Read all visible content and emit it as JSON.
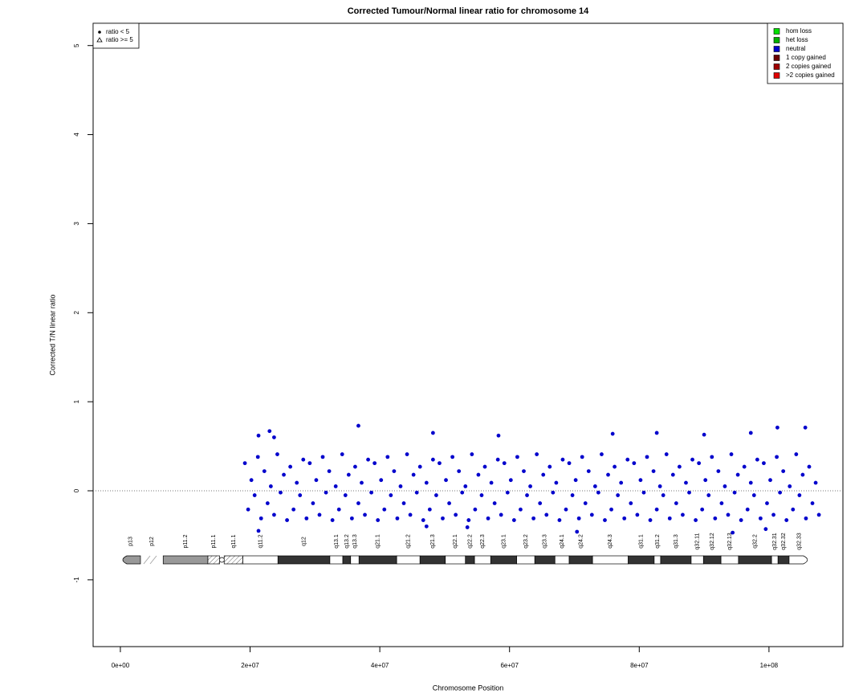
{
  "chart_data": {
    "type": "scatter",
    "title": "Corrected Tumour/Normal linear ratio for chromosome  14",
    "x_label": "Chromosome Position",
    "y_label": "Corrected T/N linear ratio",
    "xlim": [
      -4200000.0,
      111400000.0
    ],
    "ylim": [
      -1.75,
      5.25
    ],
    "xticks": [
      {
        "value": 0,
        "label": "0e+00"
      },
      {
        "value": 20000000.0,
        "label": "2e+07"
      },
      {
        "value": 40000000.0,
        "label": "4e+07"
      },
      {
        "value": 60000000.0,
        "label": "6e+07"
      },
      {
        "value": 80000000.0,
        "label": "8e+07"
      },
      {
        "value": 100000000.0,
        "label": "1e+08"
      }
    ],
    "yticks": [
      -1,
      0,
      1,
      2,
      3,
      4,
      5
    ],
    "reference_line": 0,
    "series": [
      {
        "name": "neutral",
        "color": "#0000cc",
        "x": [
          19200000.0,
          19700000.0,
          20200000.0,
          20700000.0,
          21200000.0,
          21700000.0,
          22200000.0,
          22700000.0,
          23200000.0,
          23700000.0,
          24200000.0,
          24700000.0,
          25200000.0,
          25700000.0,
          26200000.0,
          26700000.0,
          27200000.0,
          27700000.0,
          28200000.0,
          28700000.0,
          29200000.0,
          29700000.0,
          30200000.0,
          30700000.0,
          31200000.0,
          31700000.0,
          32200000.0,
          32700000.0,
          33200000.0,
          33700000.0,
          34200000.0,
          34700000.0,
          35200000.0,
          35700000.0,
          36200000.0,
          36700000.0,
          37200000.0,
          37700000.0,
          38200000.0,
          38700000.0,
          39200000.0,
          39700000.0,
          40200000.0,
          40700000.0,
          41200000.0,
          41700000.0,
          42200000.0,
          42700000.0,
          43200000.0,
          43700000.0,
          44200000.0,
          44700000.0,
          45200000.0,
          45700000.0,
          46200000.0,
          46700000.0,
          47200000.0,
          47700000.0,
          48200000.0,
          48700000.0,
          49200000.0,
          49700000.0,
          50200000.0,
          50700000.0,
          51200000.0,
          51700000.0,
          52200000.0,
          52700000.0,
          53200000.0,
          53700000.0,
          54200000.0,
          54700000.0,
          55200000.0,
          55700000.0,
          56200000.0,
          56700000.0,
          57200000.0,
          57700000.0,
          58200000.0,
          58700000.0,
          59200000.0,
          59700000.0,
          60200000.0,
          60700000.0,
          61200000.0,
          61700000.0,
          62200000.0,
          62700000.0,
          63200000.0,
          63700000.0,
          64200000.0,
          64700000.0,
          65200000.0,
          65700000.0,
          66200000.0,
          66700000.0,
          67200000.0,
          67700000.0,
          68200000.0,
          68700000.0,
          69200000.0,
          69700000.0,
          70200000.0,
          70700000.0,
          71200000.0,
          71700000.0,
          72200000.0,
          72700000.0,
          73200000.0,
          73700000.0,
          74200000.0,
          74700000.0,
          75200000.0,
          75700000.0,
          76200000.0,
          76700000.0,
          77200000.0,
          77700000.0,
          78200000.0,
          78700000.0,
          79200000.0,
          79700000.0,
          80200000.0,
          80700000.0,
          81200000.0,
          81700000.0,
          82200000.0,
          82700000.0,
          83200000.0,
          83700000.0,
          84200000.0,
          84700000.0,
          85200000.0,
          85700000.0,
          86200000.0,
          86700000.0,
          87200000.0,
          87700000.0,
          88200000.0,
          88700000.0,
          89200000.0,
          89700000.0,
          90200000.0,
          90700000.0,
          91200000.0,
          91700000.0,
          92200000.0,
          92700000.0,
          93200000.0,
          93700000.0,
          94200000.0,
          94700000.0,
          95200000.0,
          95700000.0,
          96200000.0,
          96700000.0,
          97200000.0,
          97700000.0,
          98200000.0,
          98700000.0,
          99200000.0,
          99700000.0,
          100200000.0,
          100700000.0,
          101200000.0,
          101700000.0,
          102200000.0,
          102700000.0,
          103200000.0,
          103700000.0,
          104200000.0,
          104700000.0,
          105200000.0,
          105700000.0,
          106200000.0,
          106700000.0,
          107200000.0,
          107700000.0,
          21300000.0,
          23000000.0,
          23700000.0,
          36700000.0,
          48200000.0,
          58300000.0,
          75900000.0,
          82700000.0,
          101300000.0,
          105600000.0,
          90000000.0,
          97200000.0,
          21300000.0,
          70400000.0,
          94400000.0,
          99500000.0,
          53500000.0,
          47200000.0
        ],
        "values": [
          0.31,
          -0.21,
          0.12,
          -0.05,
          0.38,
          -0.31,
          0.22,
          -0.14,
          0.05,
          -0.27,
          0.41,
          -0.02,
          0.18,
          -0.33,
          0.27,
          -0.21,
          0.09,
          -0.05,
          0.35,
          -0.31,
          0.31,
          -0.14,
          0.12,
          -0.27,
          0.38,
          -0.02,
          0.22,
          -0.33,
          0.05,
          -0.21,
          0.41,
          -0.05,
          0.18,
          -0.31,
          0.27,
          -0.14,
          0.09,
          -0.27,
          0.35,
          -0.02,
          0.31,
          -0.33,
          0.12,
          -0.21,
          0.38,
          -0.05,
          0.22,
          -0.31,
          0.05,
          -0.14,
          0.41,
          -0.27,
          0.18,
          -0.02,
          0.27,
          -0.33,
          0.09,
          -0.21,
          0.35,
          -0.05,
          0.31,
          -0.31,
          0.12,
          -0.14,
          0.38,
          -0.27,
          0.22,
          -0.02,
          0.05,
          -0.33,
          0.41,
          -0.21,
          0.18,
          -0.05,
          0.27,
          -0.31,
          0.09,
          -0.14,
          0.35,
          -0.27,
          0.31,
          -0.02,
          0.12,
          -0.33,
          0.38,
          -0.21,
          0.22,
          -0.05,
          0.05,
          -0.31,
          0.41,
          -0.14,
          0.18,
          -0.27,
          0.27,
          -0.02,
          0.09,
          -0.33,
          0.35,
          -0.21,
          0.31,
          -0.05,
          0.12,
          -0.31,
          0.38,
          -0.14,
          0.22,
          -0.27,
          0.05,
          -0.02,
          0.41,
          -0.33,
          0.18,
          -0.21,
          0.27,
          -0.05,
          0.09,
          -0.31,
          0.35,
          -0.14,
          0.31,
          -0.27,
          0.12,
          -0.02,
          0.38,
          -0.33,
          0.22,
          -0.21,
          0.05,
          -0.05,
          0.41,
          -0.31,
          0.18,
          -0.14,
          0.27,
          -0.27,
          0.09,
          -0.02,
          0.35,
          -0.33,
          0.31,
          -0.21,
          0.12,
          -0.05,
          0.38,
          -0.31,
          0.22,
          -0.14,
          0.05,
          -0.27,
          0.41,
          -0.02,
          0.18,
          -0.33,
          0.27,
          -0.21,
          0.09,
          -0.05,
          0.35,
          -0.31,
          0.31,
          -0.14,
          0.12,
          -0.27,
          0.38,
          -0.02,
          0.22,
          -0.33,
          0.05,
          -0.21,
          0.41,
          -0.05,
          0.18,
          -0.31,
          0.27,
          -0.14,
          0.09,
          -0.27,
          0.62,
          0.67,
          0.6,
          0.73,
          0.65,
          0.62,
          0.64,
          0.65,
          0.71,
          0.71,
          0.63,
          0.65,
          -0.45,
          -0.46,
          -0.47,
          -0.43,
          -0.41,
          -0.4
        ]
      }
    ],
    "marker_legend": [
      "ratio < 5",
      "ratio >= 5"
    ],
    "legend": [
      {
        "name": "hom loss",
        "color": "#00e000"
      },
      {
        "name": "het loss",
        "color": "#00b000"
      },
      {
        "name": "neutral",
        "color": "#0000cc"
      },
      {
        "name": "1 copy gained",
        "color": "#6b0000"
      },
      {
        "name": "2 copies gained",
        "color": "#a00000"
      },
      {
        "name": ">2 copies gained",
        "color": "#e00000"
      }
    ],
    "ideogram": [
      {
        "label": "p13",
        "start": 0,
        "end": 3100000.0,
        "stain": "gvar"
      },
      {
        "label": "p12",
        "start": 3100000.0,
        "end": 6600000.0,
        "stain": "stalk"
      },
      {
        "label": "p11.2",
        "start": 6600000.0,
        "end": 13500000.0,
        "stain": "gvar"
      },
      {
        "label": "p11.1",
        "start": 13500000.0,
        "end": 15300000.0,
        "stain": "acen"
      },
      {
        "label": "q11.1",
        "start": 16000000.0,
        "end": 18900000.0,
        "stain": "acen"
      },
      {
        "label": "q11.2",
        "start": 18900000.0,
        "end": 24300000.0,
        "stain": "gneg"
      },
      {
        "label": "q12",
        "start": 24300000.0,
        "end": 32300000.0,
        "stain": "gpos"
      },
      {
        "label": "q13.1",
        "start": 32300000.0,
        "end": 34300000.0,
        "stain": "gneg"
      },
      {
        "label": "q13.2",
        "start": 34300000.0,
        "end": 35500000.0,
        "stain": "gpos"
      },
      {
        "label": "q13.3",
        "start": 35500000.0,
        "end": 36800000.0,
        "stain": "gneg"
      },
      {
        "label": "q21.1",
        "start": 36800000.0,
        "end": 42600000.0,
        "stain": "gpos"
      },
      {
        "label": "q21.2",
        "start": 42600000.0,
        "end": 46200000.0,
        "stain": "gneg"
      },
      {
        "label": "q21.3",
        "start": 46200000.0,
        "end": 50100000.0,
        "stain": "gpos"
      },
      {
        "label": "q22.1",
        "start": 50100000.0,
        "end": 53200000.0,
        "stain": "gneg"
      },
      {
        "label": "q22.2",
        "start": 53200000.0,
        "end": 54600000.0,
        "stain": "gpos"
      },
      {
        "label": "q22.3",
        "start": 54600000.0,
        "end": 57100000.0,
        "stain": "gneg"
      },
      {
        "label": "q23.1",
        "start": 57100000.0,
        "end": 61100000.0,
        "stain": "gpos"
      },
      {
        "label": "q23.2",
        "start": 61100000.0,
        "end": 63900000.0,
        "stain": "gneg"
      },
      {
        "label": "q23.3",
        "start": 63900000.0,
        "end": 67000000.0,
        "stain": "gpos"
      },
      {
        "label": "q24.1",
        "start": 67000000.0,
        "end": 69200000.0,
        "stain": "gneg"
      },
      {
        "label": "q24.2",
        "start": 69200000.0,
        "end": 72800000.0,
        "stain": "gpos"
      },
      {
        "label": "q24.3",
        "start": 72800000.0,
        "end": 78300000.0,
        "stain": "gneg"
      },
      {
        "label": "q31.1",
        "start": 78300000.0,
        "end": 82300000.0,
        "stain": "gpos"
      },
      {
        "label": "q31.2",
        "start": 82300000.0,
        "end": 83300000.0,
        "stain": "gneg"
      },
      {
        "label": "q31.3",
        "start": 83300000.0,
        "end": 88000000.0,
        "stain": "gpos"
      },
      {
        "label": "q32.11",
        "start": 88000000.0,
        "end": 89900000.0,
        "stain": "gneg"
      },
      {
        "label": "q32.12",
        "start": 89900000.0,
        "end": 92600000.0,
        "stain": "gpos"
      },
      {
        "label": "q32.13",
        "start": 92600000.0,
        "end": 95300000.0,
        "stain": "gneg"
      },
      {
        "label": "q32.2",
        "start": 95300000.0,
        "end": 100400000.0,
        "stain": "gpos"
      },
      {
        "label": "q32.31",
        "start": 100400000.0,
        "end": 101400000.0,
        "stain": "gneg"
      },
      {
        "label": "q32.32",
        "start": 101400000.0,
        "end": 103100000.0,
        "stain": "gpos"
      },
      {
        "label": "q32.33",
        "start": 103100000.0,
        "end": 106300000.0,
        "stain": "gneg"
      }
    ]
  }
}
